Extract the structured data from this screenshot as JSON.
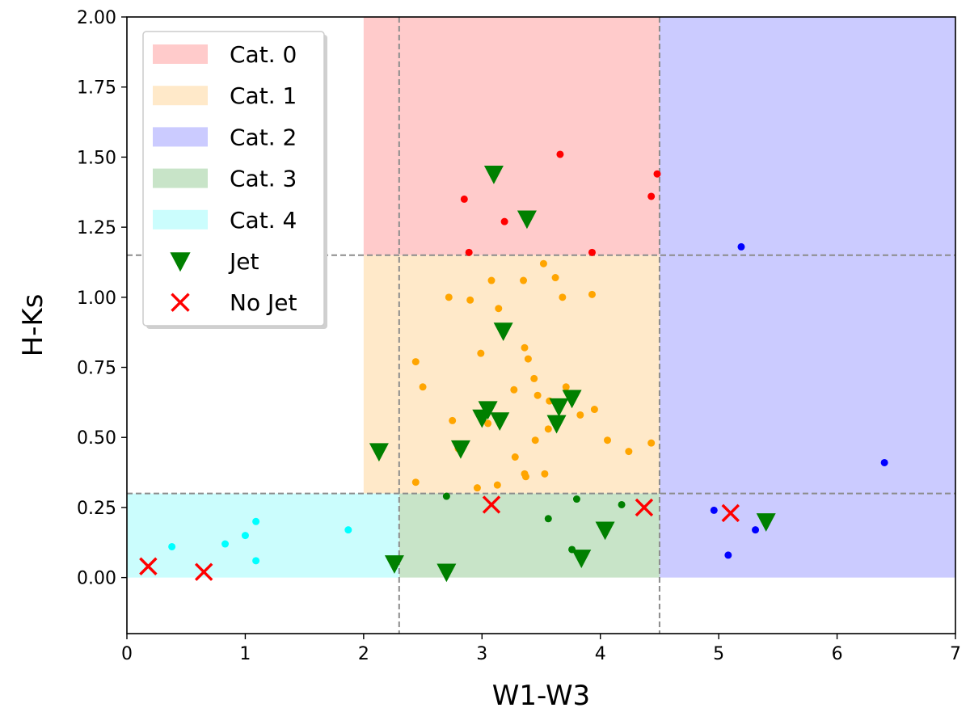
{
  "chart_data": {
    "type": "scatter",
    "title": "",
    "xlabel": "W1-W3",
    "ylabel": "H-Ks",
    "xlim": [
      0,
      7
    ],
    "ylim": [
      -0.2,
      2.0
    ],
    "grid": false,
    "legend_position": "top-left",
    "xticks": [
      "0",
      "1",
      "2",
      "3",
      "4",
      "5",
      "6",
      "7"
    ],
    "xtick_values": [
      0,
      1,
      2,
      3,
      4,
      5,
      6,
      7
    ],
    "yticks": [
      "0.00",
      "0.25",
      "0.50",
      "0.75",
      "1.00",
      "1.25",
      "1.50",
      "1.75",
      "2.00"
    ],
    "ytick_values": [
      0,
      0.25,
      0.5,
      0.75,
      1.0,
      1.25,
      1.5,
      1.75,
      2.0
    ],
    "regions": [
      {
        "name": "Cat. 0",
        "color": "#ffcbcb",
        "x": [
          2.0,
          4.5
        ],
        "y": [
          1.15,
          2.0
        ]
      },
      {
        "name": "Cat. 1",
        "color": "#ffe9c9",
        "x": [
          2.0,
          4.5
        ],
        "y": [
          0.3,
          1.15
        ]
      },
      {
        "name": "Cat. 2",
        "color": "#cbcbff",
        "x": [
          4.5,
          7.0
        ],
        "y": [
          0.0,
          2.0
        ]
      },
      {
        "name": "Cat. 3",
        "color": "#c8e4c8",
        "x": [
          2.3,
          4.5
        ],
        "y": [
          0.0,
          0.3
        ]
      },
      {
        "name": "Cat. 4",
        "color": "#cbfdfd",
        "x": [
          0.0,
          2.3
        ],
        "y": [
          0.0,
          0.3
        ]
      }
    ],
    "reference_lines": {
      "vertical": [
        2.3,
        4.5
      ],
      "horizontal": [
        1.15,
        0.3
      ],
      "color": "#8c8c8c"
    },
    "series": [
      {
        "name": "Cat. 0 sources",
        "marker": "dot",
        "color": "#ff0000",
        "points": [
          [
            2.85,
            1.35
          ],
          [
            3.19,
            1.27
          ],
          [
            3.66,
            1.51
          ],
          [
            2.89,
            1.16
          ],
          [
            3.93,
            1.16
          ],
          [
            4.43,
            1.36
          ],
          [
            4.48,
            1.44
          ]
        ]
      },
      {
        "name": "Cat. 1 sources",
        "marker": "dot",
        "color": "#ffa500",
        "points": [
          [
            2.72,
            1.0
          ],
          [
            2.9,
            0.99
          ],
          [
            3.08,
            1.06
          ],
          [
            3.14,
            0.96
          ],
          [
            3.35,
            1.06
          ],
          [
            3.52,
            1.12
          ],
          [
            3.62,
            1.07
          ],
          [
            3.68,
            1.0
          ],
          [
            3.93,
            1.01
          ],
          [
            2.44,
            0.77
          ],
          [
            2.99,
            0.8
          ],
          [
            3.36,
            0.82
          ],
          [
            3.39,
            0.78
          ],
          [
            3.44,
            0.71
          ],
          [
            2.5,
            0.68
          ],
          [
            3.27,
            0.67
          ],
          [
            3.47,
            0.65
          ],
          [
            3.57,
            0.63
          ],
          [
            3.71,
            0.68
          ],
          [
            3.95,
            0.6
          ],
          [
            2.75,
            0.56
          ],
          [
            3.05,
            0.55
          ],
          [
            3.83,
            0.58
          ],
          [
            3.56,
            0.53
          ],
          [
            3.45,
            0.49
          ],
          [
            4.06,
            0.49
          ],
          [
            4.43,
            0.48
          ],
          [
            2.8,
            0.46
          ],
          [
            4.24,
            0.45
          ],
          [
            3.28,
            0.43
          ],
          [
            3.36,
            0.37
          ],
          [
            3.53,
            0.37
          ],
          [
            3.37,
            0.36
          ],
          [
            2.44,
            0.34
          ],
          [
            2.96,
            0.32
          ],
          [
            3.13,
            0.33
          ]
        ]
      },
      {
        "name": "Cat. 2 sources",
        "marker": "dot",
        "color": "#0000ff",
        "points": [
          [
            5.19,
            1.18
          ],
          [
            6.4,
            0.41
          ],
          [
            4.96,
            0.24
          ],
          [
            5.31,
            0.17
          ],
          [
            5.08,
            0.08
          ]
        ]
      },
      {
        "name": "Cat. 3 sources",
        "marker": "dot",
        "color": "#008000",
        "points": [
          [
            2.7,
            0.29
          ],
          [
            3.8,
            0.28
          ],
          [
            4.18,
            0.26
          ],
          [
            3.56,
            0.21
          ],
          [
            3.76,
            0.1
          ]
        ]
      },
      {
        "name": "Cat. 4 sources",
        "marker": "dot",
        "color": "#00ffff",
        "points": [
          [
            0.38,
            0.11
          ],
          [
            0.83,
            0.12
          ],
          [
            1.0,
            0.15
          ],
          [
            1.09,
            0.2
          ],
          [
            1.09,
            0.06
          ],
          [
            1.87,
            0.17
          ]
        ]
      },
      {
        "name": "Jet",
        "marker": "triangle-down",
        "color": "#008000",
        "points": [
          [
            3.1,
            1.44
          ],
          [
            3.38,
            1.28
          ],
          [
            3.18,
            0.88
          ],
          [
            2.13,
            0.45
          ],
          [
            2.82,
            0.46
          ],
          [
            3.0,
            0.57
          ],
          [
            3.05,
            0.6
          ],
          [
            3.15,
            0.56
          ],
          [
            3.63,
            0.55
          ],
          [
            3.65,
            0.61
          ],
          [
            3.76,
            0.64
          ],
          [
            2.26,
            0.05
          ],
          [
            2.7,
            0.02
          ],
          [
            3.84,
            0.07
          ],
          [
            4.04,
            0.17
          ],
          [
            5.4,
            0.2
          ]
        ]
      },
      {
        "name": "No Jet",
        "marker": "x",
        "color": "#ff0000",
        "points": [
          [
            0.18,
            0.04
          ],
          [
            0.65,
            0.02
          ],
          [
            3.08,
            0.26
          ],
          [
            4.37,
            0.25
          ],
          [
            5.1,
            0.23
          ]
        ]
      }
    ],
    "legend": [
      {
        "label": "Cat. 0",
        "type": "patch",
        "color": "#ffcbcb"
      },
      {
        "label": "Cat. 1",
        "type": "patch",
        "color": "#ffe9c9"
      },
      {
        "label": "Cat. 2",
        "type": "patch",
        "color": "#cbcbff"
      },
      {
        "label": "Cat. 3",
        "type": "patch",
        "color": "#c8e4c8"
      },
      {
        "label": "Cat. 4",
        "type": "patch",
        "color": "#cbfdfd"
      },
      {
        "label": "Jet",
        "type": "triangle-down",
        "color": "#008000"
      },
      {
        "label": "No Jet",
        "type": "x",
        "color": "#ff0000"
      }
    ]
  }
}
